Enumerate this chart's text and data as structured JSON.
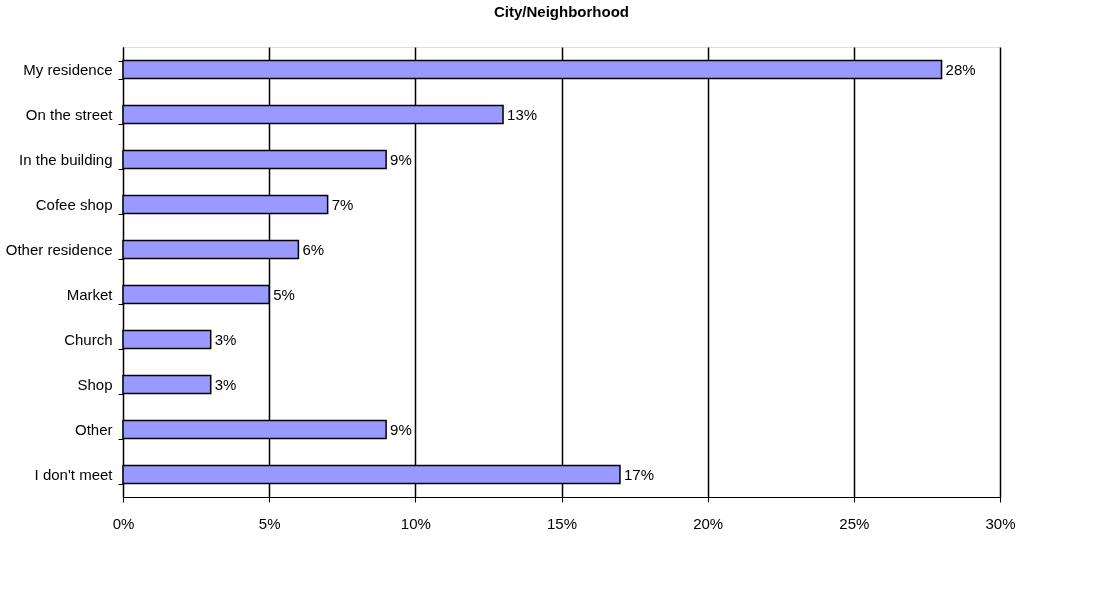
{
  "chart_data": {
    "type": "bar",
    "orientation": "horizontal",
    "title": "City/Neighborhood",
    "categories": [
      "My residence",
      "On the street",
      "In the building",
      "Cofee shop",
      "Other residence",
      "Market",
      "Church",
      "Shop",
      "Other",
      "I don't meet"
    ],
    "values": [
      28,
      13,
      9,
      7,
      6,
      5,
      3,
      3,
      9,
      17
    ],
    "value_labels": [
      "28%",
      "13%",
      "9%",
      "7%",
      "6%",
      "5%",
      "3%",
      "3%",
      "9%",
      "17%"
    ],
    "color": "#9999ff",
    "xlim": [
      0,
      30
    ],
    "xticks": [
      {
        "value": 0,
        "label": "0%"
      },
      {
        "value": 5,
        "label": "5%"
      },
      {
        "value": 10,
        "label": "10%"
      },
      {
        "value": 15,
        "label": "15%"
      },
      {
        "value": 20,
        "label": "20%"
      },
      {
        "value": 25,
        "label": "25%"
      },
      {
        "value": 30,
        "label": "30%"
      }
    ],
    "grid": "x"
  }
}
